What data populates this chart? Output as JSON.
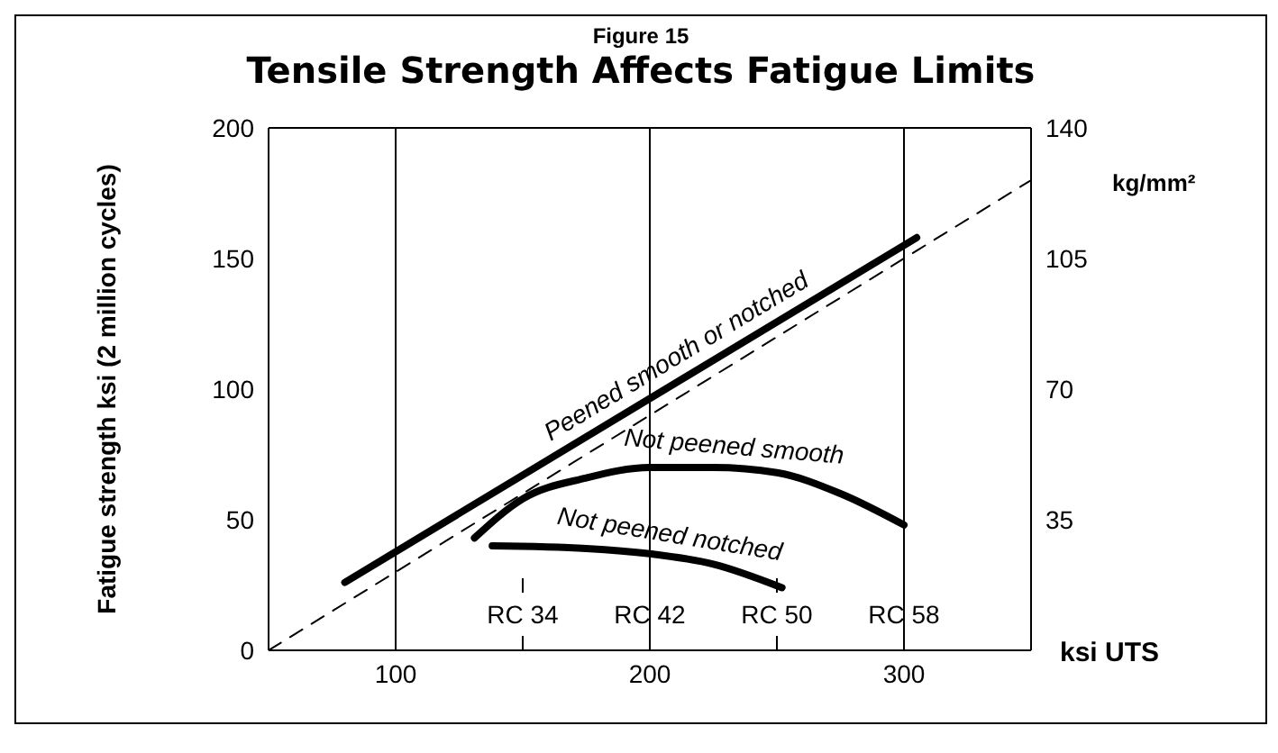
{
  "chart_data": {
    "type": "line",
    "subtitle": "Figure 15",
    "title": "Tensile Strength Affects Fatigue Limits",
    "ylabel": "Fatigue strength ksi (2 million cycles)",
    "xlabel": "ksi UTS",
    "y2label": "kg/mm²",
    "xlim": [
      50,
      350
    ],
    "xticks": [
      100,
      200,
      300
    ],
    "ylim": [
      0,
      200
    ],
    "yticks": [
      0,
      50,
      100,
      150,
      200
    ],
    "y2lim": [
      0,
      140
    ],
    "y2ticks": [
      35,
      70,
      105,
      140
    ],
    "grid": true,
    "legend": false,
    "marker": "none",
    "series": [
      {
        "name": "Peened smooth or notched",
        "color": "#000000",
        "x": [
          80,
          305
        ],
        "values": [
          26,
          158
        ]
      },
      {
        "name": "Not peened smooth",
        "color": "#000000",
        "x": [
          131,
          150,
          175,
          200,
          225,
          250,
          275,
          300
        ],
        "values": [
          43,
          58,
          66,
          70,
          70,
          68,
          60,
          48
        ]
      },
      {
        "name": "Not peened notched",
        "color": "#000000",
        "x": [
          138,
          175,
          200,
          225,
          252
        ],
        "values": [
          40,
          39,
          37,
          33,
          24
        ]
      },
      {
        "color": "#000000",
        "x": [
          50,
          350
        ],
        "values": [
          0,
          180
        ],
        "line_style": "dashed"
      }
    ],
    "ref_lines": [
      {
        "axis": "x",
        "value": 150,
        "label": "RC 34",
        "line_style": "dashed"
      },
      {
        "axis": "x",
        "value": 200,
        "label": "RC 42"
      },
      {
        "axis": "x",
        "value": 250,
        "label": "RC 50",
        "line_style": "dashed"
      },
      {
        "axis": "x",
        "value": 300,
        "label": "RC 58"
      }
    ]
  }
}
